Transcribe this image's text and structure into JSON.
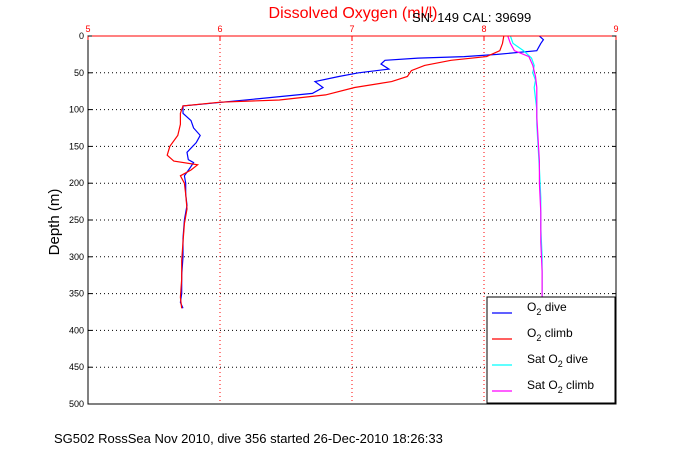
{
  "chart_data": {
    "type": "line",
    "title": "Dissolved Oxygen (ml/l)",
    "subtitle": "SN: 149  CAL: 39699",
    "ylabel": "Depth (m)",
    "footer": "SG502 RossSea Nov 2010, dive 356 started 26-Dec-2010 18:26:33",
    "xlim": [
      5,
      9
    ],
    "ylim": [
      0,
      500
    ],
    "y_reversed": true,
    "x_ticks": [
      "5",
      "6",
      "7",
      "8",
      "9"
    ],
    "y_ticks": [
      "0",
      "50",
      "100",
      "150",
      "200",
      "250",
      "300",
      "350",
      "400",
      "450",
      "500"
    ],
    "grid": true,
    "legend_position": "bottom-right",
    "colors": {
      "axis_top": "#ff0000",
      "title": "#ff0000",
      "grid_x": "#ff0000",
      "grid_y": "#000000"
    },
    "series": [
      {
        "name_main": "O",
        "name_sub": "2",
        "name_rest": " dive",
        "color": "#0000ff",
        "points": [
          [
            8.42,
            0
          ],
          [
            8.45,
            5
          ],
          [
            8.43,
            10
          ],
          [
            8.4,
            20
          ],
          [
            8.1,
            25
          ],
          [
            7.85,
            28
          ],
          [
            7.5,
            30
          ],
          [
            7.25,
            33
          ],
          [
            7.22,
            38
          ],
          [
            7.28,
            45
          ],
          [
            7.05,
            50
          ],
          [
            6.9,
            55
          ],
          [
            6.72,
            62
          ],
          [
            6.78,
            70
          ],
          [
            6.7,
            78
          ],
          [
            6.3,
            85
          ],
          [
            5.9,
            92
          ],
          [
            5.72,
            95
          ],
          [
            5.72,
            105
          ],
          [
            5.78,
            115
          ],
          [
            5.8,
            125
          ],
          [
            5.85,
            135
          ],
          [
            5.82,
            145
          ],
          [
            5.75,
            158
          ],
          [
            5.76,
            168
          ],
          [
            5.8,
            172
          ],
          [
            5.77,
            180
          ],
          [
            5.73,
            190
          ],
          [
            5.74,
            200
          ],
          [
            5.74,
            215
          ],
          [
            5.75,
            230
          ],
          [
            5.73,
            250
          ],
          [
            5.72,
            275
          ],
          [
            5.72,
            300
          ],
          [
            5.71,
            325
          ],
          [
            5.71,
            350
          ],
          [
            5.7,
            362
          ],
          [
            5.72,
            370
          ]
        ]
      },
      {
        "name_main": "O",
        "name_sub": "2",
        "name_rest": " climb",
        "color": "#ff0000",
        "points": [
          [
            8.15,
            0
          ],
          [
            8.14,
            10
          ],
          [
            8.12,
            20
          ],
          [
            8.02,
            28
          ],
          [
            7.75,
            33
          ],
          [
            7.55,
            40
          ],
          [
            7.45,
            47
          ],
          [
            7.42,
            55
          ],
          [
            7.3,
            62
          ],
          [
            7.02,
            70
          ],
          [
            6.8,
            80
          ],
          [
            6.45,
            87
          ],
          [
            6.0,
            90
          ],
          [
            5.72,
            95
          ],
          [
            5.7,
            105
          ],
          [
            5.7,
            120
          ],
          [
            5.68,
            135
          ],
          [
            5.62,
            150
          ],
          [
            5.6,
            162
          ],
          [
            5.65,
            170
          ],
          [
            5.83,
            175
          ],
          [
            5.78,
            182
          ],
          [
            5.7,
            190
          ],
          [
            5.73,
            200
          ],
          [
            5.74,
            215
          ],
          [
            5.75,
            235
          ],
          [
            5.73,
            255
          ],
          [
            5.72,
            280
          ],
          [
            5.71,
            305
          ],
          [
            5.71,
            330
          ],
          [
            5.7,
            355
          ],
          [
            5.71,
            370
          ]
        ]
      },
      {
        "name_main": "Sat O",
        "name_sub": "2",
        "name_rest": " dive",
        "color": "#00ffff",
        "points": [
          [
            8.2,
            0
          ],
          [
            8.22,
            10
          ],
          [
            8.3,
            20
          ],
          [
            8.36,
            30
          ],
          [
            8.38,
            40
          ],
          [
            8.37,
            50
          ],
          [
            8.39,
            60
          ],
          [
            8.38,
            70
          ],
          [
            8.39,
            85
          ],
          [
            8.4,
            100
          ],
          [
            8.4,
            120
          ],
          [
            8.41,
            150
          ],
          [
            8.42,
            180
          ],
          [
            8.43,
            220
          ],
          [
            8.43,
            260
          ],
          [
            8.44,
            300
          ],
          [
            8.44,
            340
          ],
          [
            8.44,
            360
          ]
        ]
      },
      {
        "name_main": "Sat O",
        "name_sub": "2",
        "name_rest": " climb",
        "color": "#ff00ff",
        "points": [
          [
            8.18,
            0
          ],
          [
            8.2,
            10
          ],
          [
            8.23,
            20
          ],
          [
            8.34,
            28
          ],
          [
            8.37,
            40
          ],
          [
            8.39,
            55
          ],
          [
            8.4,
            70
          ],
          [
            8.4,
            90
          ],
          [
            8.4,
            110
          ],
          [
            8.41,
            140
          ],
          [
            8.42,
            170
          ],
          [
            8.42,
            200
          ],
          [
            8.43,
            240
          ],
          [
            8.43,
            280
          ],
          [
            8.44,
            320
          ],
          [
            8.44,
            360
          ]
        ]
      }
    ]
  }
}
